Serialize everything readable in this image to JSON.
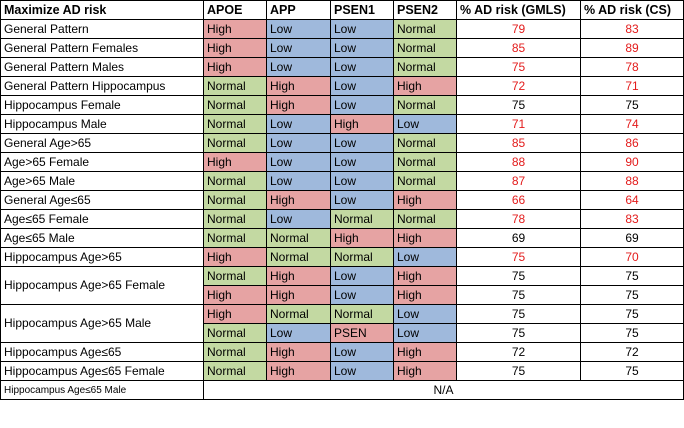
{
  "headers": [
    "Maximize AD risk",
    "APOE",
    "APP",
    "PSEN1",
    "PSEN2",
    "% AD risk (GMLS)",
    "% AD risk (CS)"
  ],
  "rows": [
    {
      "label": "General Pattern",
      "apoe": "High",
      "app": "Low",
      "psen1": "Low",
      "psen2": "Normal",
      "gmls": "79",
      "cs": "83",
      "red": true
    },
    {
      "label": "General Pattern Females",
      "apoe": "High",
      "app": "Low",
      "psen1": "Low",
      "psen2": "Normal",
      "gmls": "85",
      "cs": "89",
      "red": true
    },
    {
      "label": "General Pattern Males",
      "apoe": "High",
      "app": "Low",
      "psen1": "Low",
      "psen2": "Normal",
      "gmls": "75",
      "cs": "78",
      "red": true
    },
    {
      "label": "General Pattern Hippocampus",
      "apoe": "Normal",
      "app": "High",
      "psen1": "Low",
      "psen2": "High",
      "gmls": "72",
      "cs": "71",
      "red": true
    },
    {
      "label": "Hippocampus Female",
      "apoe": "Normal",
      "app": "High",
      "psen1": "Low",
      "psen2": "Normal",
      "gmls": "75",
      "cs": "75",
      "red": false
    },
    {
      "label": "Hippocampus Male",
      "apoe": "Normal",
      "app": "Low",
      "psen1": "High",
      "psen2": "Low",
      "gmls": "71",
      "cs": "74",
      "red": true
    },
    {
      "label": "General Age>65",
      "apoe": "Normal",
      "app": "Low",
      "psen1": "Low",
      "psen2": "Normal",
      "gmls": "85",
      "cs": "86",
      "red": true
    },
    {
      "label": "Age>65 Female",
      "apoe": "High",
      "app": "Low",
      "psen1": "Low",
      "psen2": "Normal",
      "gmls": "88",
      "cs": "90",
      "red": true
    },
    {
      "label": "Age>65 Male",
      "apoe": "Normal",
      "app": "Low",
      "psen1": "Low",
      "psen2": "Normal",
      "gmls": "87",
      "cs": "88",
      "red": true
    },
    {
      "label": "General Age≤65",
      "apoe": "Normal",
      "app": "High",
      "psen1": "Low",
      "psen2": "High",
      "gmls": "66",
      "cs": "64",
      "red": true
    },
    {
      "label": "Age≤65 Female",
      "apoe": "Normal",
      "app": "Low",
      "psen1": "Normal",
      "psen2": "Normal",
      "gmls": "78",
      "cs": "83",
      "red": true
    },
    {
      "label": "Age≤65 Male",
      "apoe": "Normal",
      "app": "Normal",
      "psen1": "High",
      "psen2": "High",
      "gmls": "69",
      "cs": "69",
      "red": false
    },
    {
      "label": "Hippocampus Age>65",
      "apoe": "High",
      "app": "Normal",
      "psen1": "Normal",
      "psen2": "Low",
      "gmls": "75",
      "cs": "70",
      "red": true
    },
    {
      "label": "Hippocampus Age>65 Female",
      "apoe": "Normal",
      "app": "High",
      "psen1": "Low",
      "psen2": "High",
      "gmls": "75",
      "cs": "75",
      "red": false
    },
    {
      "label": "",
      "apoe": "High",
      "app": "High",
      "psen1": "Low",
      "psen2": "High",
      "gmls": "75",
      "cs": "75",
      "red": false
    },
    {
      "label": "Hippocampus Age>65 Male",
      "apoe": "High",
      "app": "Normal",
      "psen1": "Normal",
      "psen2": "Low",
      "gmls": "75",
      "cs": "75",
      "red": false
    },
    {
      "label": "",
      "apoe": "Normal",
      "app": "Low",
      "psen1": "PSEN",
      "psen2": "Low",
      "gmls": "75",
      "cs": "75",
      "red": false
    },
    {
      "label": "Hippocampus Age≤65",
      "apoe": "Normal",
      "app": "High",
      "psen1": "Low",
      "psen2": "High",
      "gmls": "72",
      "cs": "72",
      "red": false
    },
    {
      "label": "Hippocampus Age≤65 Female",
      "apoe": "Normal",
      "app": "High",
      "psen1": "Low",
      "psen2": "High",
      "gmls": "75",
      "cs": "75",
      "red": false
    }
  ],
  "last_row": {
    "label": "Hippocampus Age≤65 Male",
    "value": "N/A"
  }
}
